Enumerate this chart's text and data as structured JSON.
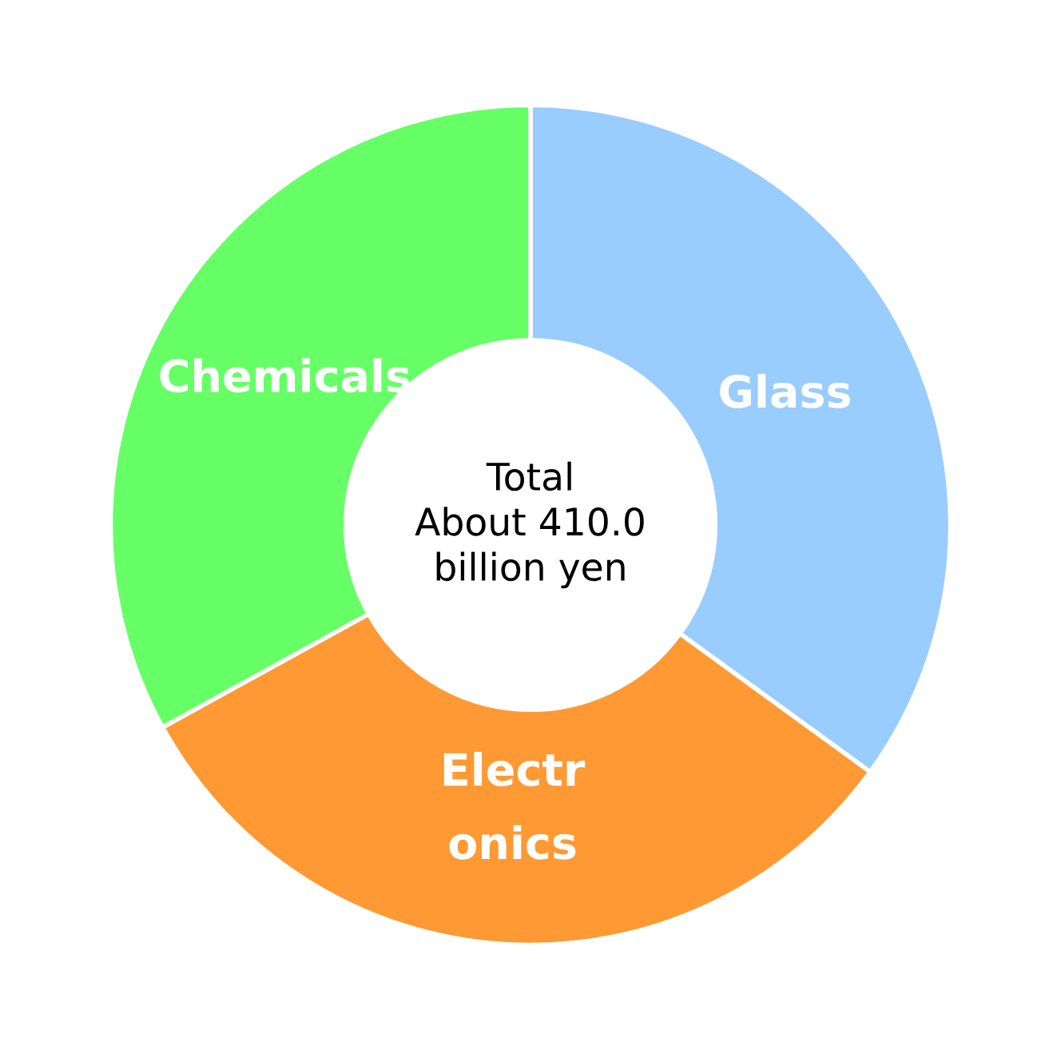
{
  "chart_data": {
    "type": "donut",
    "categories": [
      "Glass",
      "Electr\nonics",
      "Chemicals"
    ],
    "values": [
      35,
      32,
      33
    ],
    "colors": [
      "#99ccff",
      "#ff9933",
      "#66ff66"
    ],
    "annotations": [
      "Total\nAbout 410.0\nbillion yen"
    ]
  }
}
